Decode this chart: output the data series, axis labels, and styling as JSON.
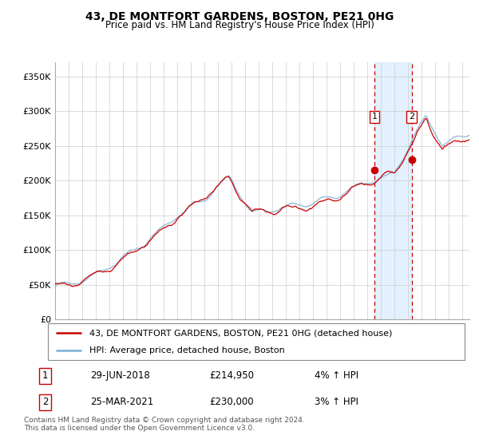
{
  "title": "43, DE MONTFORT GARDENS, BOSTON, PE21 0HG",
  "subtitle": "Price paid vs. HM Land Registry's House Price Index (HPI)",
  "ylabel_ticks": [
    "£0",
    "£50K",
    "£100K",
    "£150K",
    "£200K",
    "£250K",
    "£300K",
    "£350K"
  ],
  "ytick_values": [
    0,
    50000,
    100000,
    150000,
    200000,
    250000,
    300000,
    350000
  ],
  "ylim": [
    0,
    370000
  ],
  "xlim_start": 1995.0,
  "xlim_end": 2025.5,
  "legend_line1": "43, DE MONTFORT GARDENS, BOSTON, PE21 0HG (detached house)",
  "legend_line2": "HPI: Average price, detached house, Boston",
  "sale1_label": "1",
  "sale1_date": "29-JUN-2018",
  "sale1_price": "£214,950",
  "sale1_hpi": "4% ↑ HPI",
  "sale2_label": "2",
  "sale2_date": "25-MAR-2021",
  "sale2_price": "£230,000",
  "sale2_hpi": "3% ↑ HPI",
  "sale1_x": 2018.5,
  "sale1_y": 214950,
  "sale2_x": 2021.25,
  "sale2_y": 230000,
  "footnote": "Contains HM Land Registry data © Crown copyright and database right 2024.\nThis data is licensed under the Open Government Licence v3.0.",
  "line_color_red": "#cc0000",
  "line_color_blue": "#7aafd4",
  "shading_color": "#ddeeff",
  "vline_color": "#cc0000",
  "sale1_vline_x": 2018.5,
  "sale2_vline_x": 2021.25
}
